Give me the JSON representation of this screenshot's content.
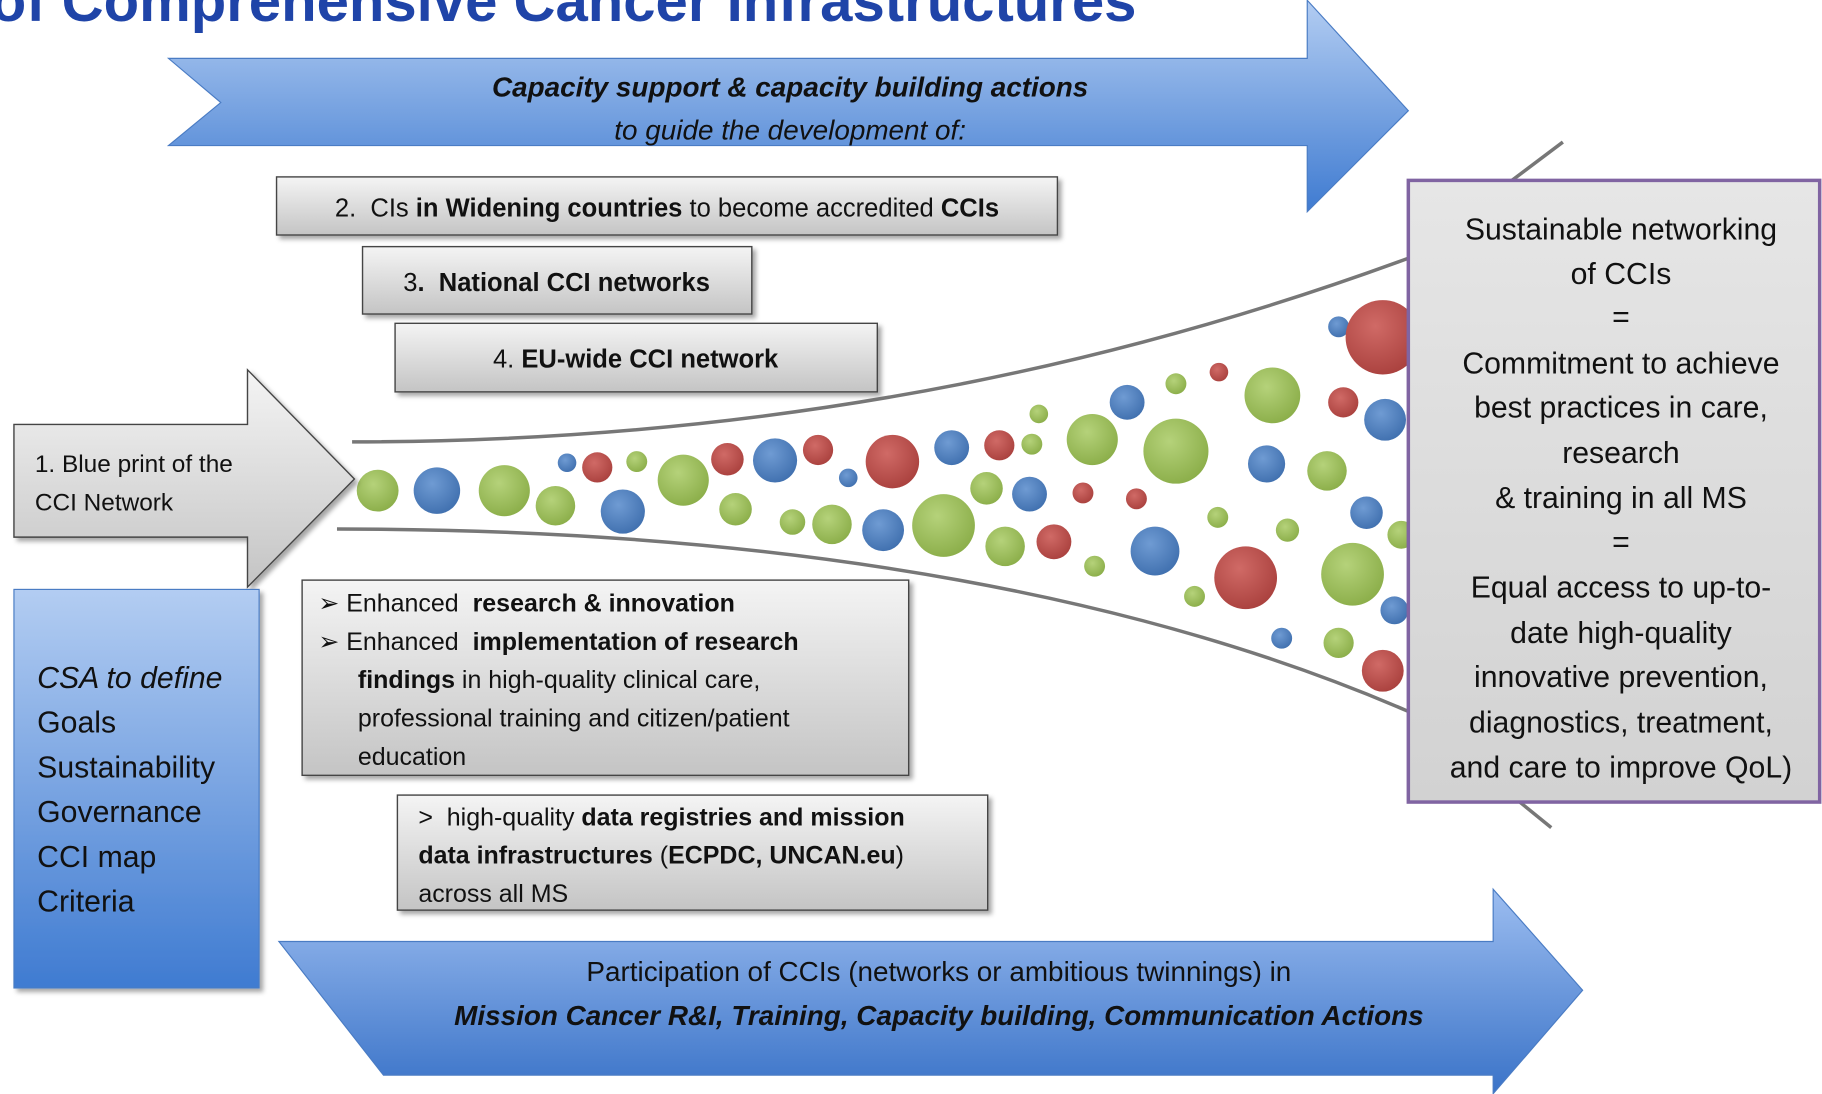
{
  "title": "of Comprehensive Cancer Infrastructures",
  "top_arrow": {
    "line1": "Capacity support & capacity building actions",
    "line2": "to guide the development of:"
  },
  "box1": {
    "lines": [
      "1. Blue print of the",
      "CCI Network"
    ]
  },
  "box2": {
    "segments": [
      "2.  CIs ",
      "in Widening countries",
      " to become accredited ",
      "CCIs"
    ]
  },
  "box3": {
    "segments": [
      "3",
      ".  National CCI networks"
    ]
  },
  "box4": {
    "segments": [
      "4. ",
      "EU-wide CCI network"
    ]
  },
  "csa": {
    "heading": "CSA to define",
    "items": [
      "Goals",
      "Sustainability",
      "Governance",
      "CCI map",
      "Criteria"
    ]
  },
  "outcomes": {
    "lines": [
      [
        "➢ Enhanced  ",
        "research & innovation"
      ],
      [
        "➢ Enhanced  ",
        "implementation of research"
      ],
      [
        "findings",
        " in high-quality clinical care,"
      ],
      [
        "professional training and citizen/patient"
      ],
      [
        "education"
      ]
    ]
  },
  "data_box": {
    "lines": [
      [
        ">  high-quality ",
        "data registries and mission"
      ],
      [
        "data infrastructures",
        " (",
        "ECPDC, UNCAN.eu",
        ")"
      ],
      [
        "across all MS"
      ]
    ]
  },
  "bottom_arrow": {
    "line1": "Participation of CCIs (networks or ambitious twinnings) in",
    "line2": "Mission Cancer R&I, Training, Capacity building, Communication Actions"
  },
  "result": {
    "lines": [
      "Sustainable networking",
      "of CCIs",
      "=",
      "Commitment to achieve",
      "best practices in care,",
      "research",
      "& training in all MS",
      "=",
      "Equal access to up-to-",
      "date high-quality",
      "innovative prevention,",
      "diagnostics, treatment,",
      "and care to improve QoL)"
    ]
  }
}
